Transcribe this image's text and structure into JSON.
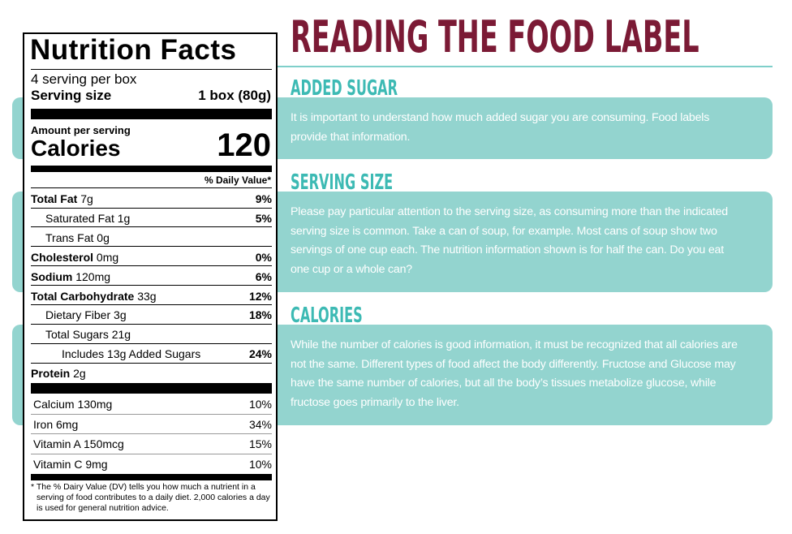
{
  "header": {
    "title": "READING THE FOOD LABEL"
  },
  "sections": [
    {
      "heading": "ADDED SUGAR",
      "text": "It is important to understand how much added sugar you are consuming. Food labels provide that information."
    },
    {
      "heading": "SERVING SIZE",
      "text": "Please pay particular attention to the serving size, as consuming more than the indicated serving size is common. Take a can of soup, for example. Most cans of soup show two servings of one cup each. The nutrition information shown is for half the can. Do you eat one cup or a whole can?"
    },
    {
      "heading": "CALORIES",
      "text": "While the number of calories is good information, it must be recognized that all calories are not the same. Different types of food affect the body differently. Fructose and Glucose may have the same number of calories, but all the body’s tissues metabolize glucose, while fructose goes primarily to the liver."
    }
  ],
  "label": {
    "title": "Nutrition Facts",
    "servings": "4 serving per box",
    "serving_size_label": "Serving size",
    "serving_size_value": "1 box (80g)",
    "amount_per_serving": "Amount per serving",
    "calories_label": "Calories",
    "calories_value": "120",
    "daily_value_header": "% Daily Value*",
    "nutrients": [
      {
        "name": "Total Fat",
        "amount": "7g",
        "dv": "9%"
      },
      {
        "name": "Saturated Fat",
        "amount": "1g",
        "dv": "5%"
      },
      {
        "name": "Trans Fat",
        "amount": "0g"
      },
      {
        "name": "Cholesterol",
        "amount": "0mg",
        "dv": "0%"
      },
      {
        "name": "Sodium",
        "amount": "120mg",
        "dv": "6%"
      },
      {
        "name": "Total Carbohydrate",
        "amount": "33g",
        "dv": "12%"
      },
      {
        "name": "Dietary Fiber",
        "amount": "3g",
        "dv": "18%"
      },
      {
        "name": "Total Sugars",
        "amount": "21g"
      },
      {
        "name": "Includes 13g Added Sugars",
        "dv": "24%"
      },
      {
        "name": "Protein",
        "amount": "2g"
      }
    ],
    "vitamins": [
      {
        "name": "Calcium 130mg",
        "dv": "10%"
      },
      {
        "name": "Iron 6mg",
        "dv": "34%"
      },
      {
        "name": "Vitamin A 150mcg",
        "dv": "15%"
      },
      {
        "name": "Vitamin C 9mg",
        "dv": "10%"
      }
    ],
    "footnote": "* The % Dairy Value (DV) tells you how much a nutrient in a serving of food contributes to a daily diet. 2,000 calories a day is used for general nutrition advice."
  }
}
